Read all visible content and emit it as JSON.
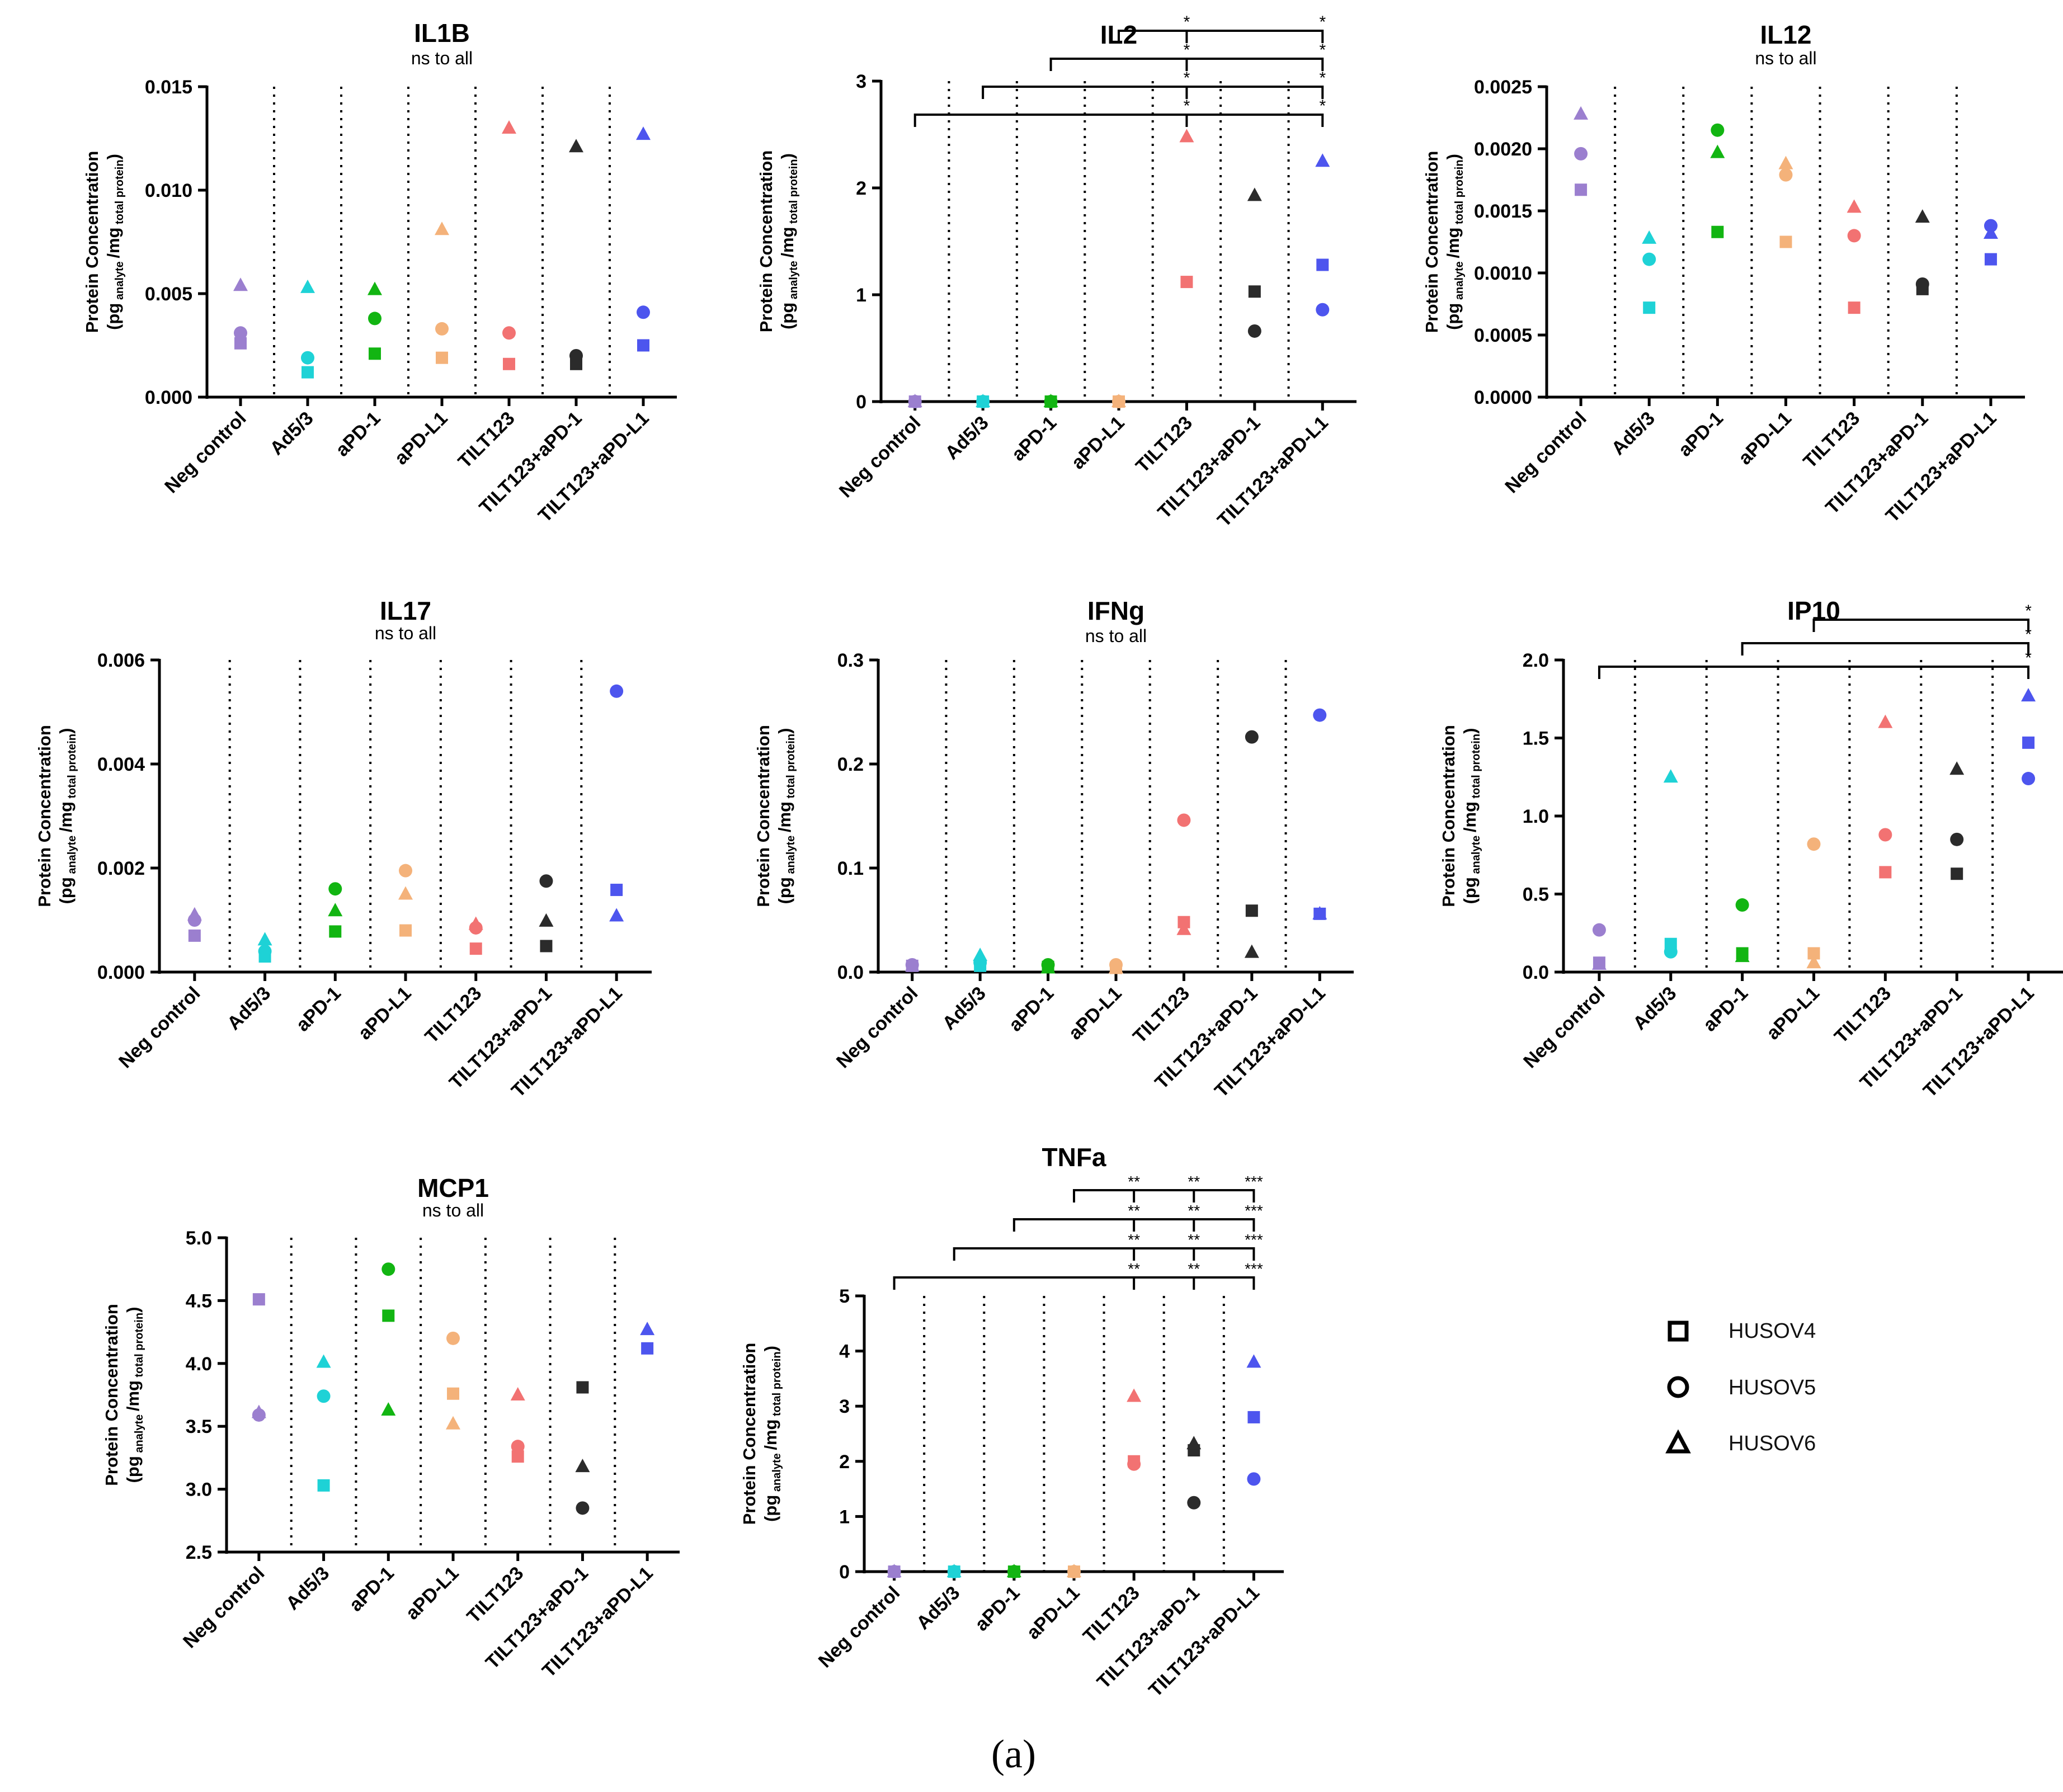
{
  "caption": "(a)",
  "colors": {
    "Neg control": "#9b7fcf",
    "Ad5/3": "#1ed2d6",
    "aPD-1": "#12b512",
    "aPD-L1": "#f4b27a",
    "TILT123": "#f27272",
    "TILT123+aPD-1": "#2b2b2b",
    "TILT123+aPD-L1": "#4d55ee"
  },
  "legend": {
    "items": [
      {
        "label": "HUSOV4",
        "marker": "square"
      },
      {
        "label": "HUSOV5",
        "marker": "circle"
      },
      {
        "label": "HUSOV6",
        "marker": "triangle"
      }
    ]
  },
  "ylabel": {
    "line1": "Protein Concentration",
    "pg": "(pg",
    "analyte": "analyte",
    "mg": "/mg",
    "total": "total protein",
    "close": ")"
  },
  "chart_data": [
    {
      "type": "scatter",
      "title": "IL1B",
      "subtitle": "ns to all",
      "categories": [
        "Neg control",
        "Ad5/3",
        "aPD-1",
        "aPD-L1",
        "TILT123",
        "TILT123+aPD-1",
        "TILT123+aPD-L1"
      ],
      "ylim": [
        0,
        0.015
      ],
      "yticks": [
        0.0,
        0.005,
        0.01,
        0.015
      ],
      "ytick_labels": [
        "0.000",
        "0.005",
        "0.010",
        "0.015"
      ],
      "series": [
        {
          "name": "HUSOV4",
          "marker": "square",
          "values": [
            0.0026,
            0.0012,
            0.0021,
            0.0019,
            0.0016,
            0.0016,
            0.0025
          ]
        },
        {
          "name": "HUSOV5",
          "marker": "circle",
          "values": [
            0.0031,
            0.0019,
            0.0038,
            0.0033,
            0.0031,
            0.002,
            0.0041
          ]
        },
        {
          "name": "HUSOV6",
          "marker": "triangle",
          "values": [
            0.0054,
            0.0053,
            0.0052,
            0.0081,
            0.013,
            0.0121,
            0.0127
          ]
        }
      ],
      "significance": []
    },
    {
      "type": "scatter",
      "title": "IL2",
      "subtitle": "",
      "categories": [
        "Neg control",
        "Ad5/3",
        "aPD-1",
        "aPD-L1",
        "TILT123",
        "TILT123+aPD-1",
        "TILT123+aPD-L1"
      ],
      "ylim": [
        0,
        3
      ],
      "yticks": [
        0,
        1,
        2,
        3
      ],
      "ytick_labels": [
        "0",
        "1",
        "2",
        "3"
      ],
      "series": [
        {
          "name": "HUSOV4",
          "marker": "square",
          "values": [
            0,
            0,
            0,
            0,
            1.12,
            1.03,
            1.28
          ]
        },
        {
          "name": "HUSOV5",
          "marker": "circle",
          "values": [
            0,
            0,
            0,
            0,
            null,
            0.66,
            0.86
          ]
        },
        {
          "name": "HUSOV6",
          "marker": "triangle",
          "values": [
            0,
            0,
            0,
            0,
            2.48,
            1.93,
            2.25
          ]
        }
      ],
      "significance": [
        {
          "from": 3,
          "to": [
            4,
            6
          ],
          "labels": [
            "*",
            "*"
          ]
        },
        {
          "from": 2,
          "to": [
            4,
            6
          ],
          "labels": [
            "*",
            "*"
          ]
        },
        {
          "from": 1,
          "to": [
            4,
            6
          ],
          "labels": [
            "*",
            "*"
          ]
        },
        {
          "from": 0,
          "to": [
            4,
            6
          ],
          "labels": [
            "*",
            "*"
          ]
        }
      ]
    },
    {
      "type": "scatter",
      "title": "IL12",
      "subtitle": "ns to all",
      "categories": [
        "Neg control",
        "Ad5/3",
        "aPD-1",
        "aPD-L1",
        "TILT123",
        "TILT123+aPD-1",
        "TILT123+aPD-L1"
      ],
      "ylim": [
        0,
        0.0025
      ],
      "yticks": [
        0.0,
        0.0005,
        0.001,
        0.0015,
        0.002,
        0.0025
      ],
      "ytick_labels": [
        "0.0000",
        "0.0005",
        "0.0010",
        "0.0015",
        "0.0020",
        "0.0025"
      ],
      "series": [
        {
          "name": "HUSOV4",
          "marker": "square",
          "values": [
            0.00167,
            0.00072,
            0.00133,
            0.00125,
            0.00072,
            0.00087,
            0.00111
          ]
        },
        {
          "name": "HUSOV5",
          "marker": "circle",
          "values": [
            0.00196,
            0.00111,
            0.00215,
            0.00179,
            0.0013,
            0.00091,
            0.00138
          ]
        },
        {
          "name": "HUSOV6",
          "marker": "triangle",
          "values": [
            0.00228,
            0.00128,
            0.00197,
            0.00188,
            0.00153,
            0.00145,
            0.00132
          ]
        }
      ],
      "significance": []
    },
    {
      "type": "scatter",
      "title": "IL17",
      "subtitle": "ns to all",
      "categories": [
        "Neg control",
        "Ad5/3",
        "aPD-1",
        "aPD-L1",
        "TILT123",
        "TILT123+aPD-1",
        "TILT123+aPD-L1"
      ],
      "ylim": [
        0,
        0.006
      ],
      "yticks": [
        0.0,
        0.002,
        0.004,
        0.006
      ],
      "ytick_labels": [
        "0.000",
        "0.002",
        "0.004",
        "0.006"
      ],
      "series": [
        {
          "name": "HUSOV4",
          "marker": "square",
          "values": [
            0.0007,
            0.0003,
            0.00078,
            0.0008,
            0.00045,
            0.0005,
            0.00158
          ]
        },
        {
          "name": "HUSOV5",
          "marker": "circle",
          "values": [
            0.001,
            0.0004,
            0.0016,
            0.00195,
            0.00085,
            0.00175,
            0.0054
          ]
        },
        {
          "name": "HUSOV6",
          "marker": "triangle",
          "values": [
            0.0011,
            0.00062,
            0.00118,
            0.0015,
            0.00092,
            0.00098,
            0.00108
          ]
        }
      ],
      "significance": []
    },
    {
      "type": "scatter",
      "title": "IFNg",
      "subtitle": "ns to all",
      "categories": [
        "Neg control",
        "Ad5/3",
        "aPD-1",
        "aPD-L1",
        "TILT123",
        "TILT123+aPD-1",
        "TILT123+aPD-L1"
      ],
      "ylim": [
        0,
        0.3
      ],
      "yticks": [
        0.0,
        0.1,
        0.2,
        0.3
      ],
      "ytick_labels": [
        "0.0",
        "0.1",
        "0.2",
        "0.3"
      ],
      "series": [
        {
          "name": "HUSOV4",
          "marker": "square",
          "values": [
            0.006,
            0.006,
            0.005,
            0.004,
            0.048,
            0.059,
            0.056
          ]
        },
        {
          "name": "HUSOV5",
          "marker": "circle",
          "values": [
            0.007,
            0.009,
            0.007,
            0.007,
            0.146,
            0.226,
            0.247
          ]
        },
        {
          "name": "HUSOV6",
          "marker": "triangle",
          "values": [
            0.006,
            0.016,
            0.004,
            0.004,
            0.041,
            0.019,
            0.056
          ]
        }
      ],
      "significance": []
    },
    {
      "type": "scatter",
      "title": "IP10",
      "subtitle": "",
      "categories": [
        "Neg control",
        "Ad5/3",
        "aPD-1",
        "aPD-L1",
        "TILT123",
        "TILT123+aPD-1",
        "TILT123+aPD-L1"
      ],
      "ylim": [
        0,
        2.0
      ],
      "yticks": [
        0.0,
        0.5,
        1.0,
        1.5,
        2.0
      ],
      "ytick_labels": [
        "0.0",
        "0.5",
        "1.0",
        "1.5",
        "2.0"
      ],
      "series": [
        {
          "name": "HUSOV4",
          "marker": "square",
          "values": [
            0.06,
            0.18,
            0.12,
            0.12,
            0.64,
            0.63,
            1.47
          ]
        },
        {
          "name": "HUSOV5",
          "marker": "circle",
          "values": [
            0.27,
            0.13,
            0.43,
            0.82,
            0.88,
            0.85,
            1.24
          ]
        },
        {
          "name": "HUSOV6",
          "marker": "triangle",
          "values": [
            0.05,
            1.25,
            0.1,
            0.06,
            1.6,
            1.3,
            1.77
          ]
        }
      ],
      "significance": [
        {
          "from": 3,
          "to": [
            6
          ],
          "labels": [
            "*"
          ]
        },
        {
          "from": 2,
          "to": [
            6
          ],
          "labels": [
            "*"
          ]
        },
        {
          "from": 0,
          "to": [
            6
          ],
          "labels": [
            "*"
          ]
        }
      ]
    },
    {
      "type": "scatter",
      "title": "MCP1",
      "subtitle": "ns to all",
      "categories": [
        "Neg control",
        "Ad5/3",
        "aPD-1",
        "aPD-L1",
        "TILT123",
        "TILT123+aPD-1",
        "TILT123+aPD-L1"
      ],
      "ylim": [
        2.5,
        5.0
      ],
      "yticks": [
        2.5,
        3.0,
        3.5,
        4.0,
        4.5,
        5.0
      ],
      "ytick_labels": [
        "2.5",
        "3.0",
        "3.5",
        "4.0",
        "4.5",
        "5.0"
      ],
      "series": [
        {
          "name": "HUSOV4",
          "marker": "square",
          "values": [
            4.51,
            3.03,
            4.38,
            3.76,
            3.26,
            3.81,
            4.12
          ]
        },
        {
          "name": "HUSOV5",
          "marker": "circle",
          "values": [
            3.59,
            3.74,
            4.75,
            4.2,
            3.34,
            2.85,
            null
          ]
        },
        {
          "name": "HUSOV6",
          "marker": "triangle",
          "values": [
            3.61,
            4.01,
            3.63,
            3.52,
            3.75,
            3.18,
            4.27
          ]
        }
      ],
      "significance": []
    },
    {
      "type": "scatter",
      "title": "TNFa",
      "subtitle": "",
      "categories": [
        "Neg control",
        "Ad5/3",
        "aPD-1",
        "aPD-L1",
        "TILT123",
        "TILT123+aPD-1",
        "TILT123+aPD-L1"
      ],
      "ylim": [
        0,
        5
      ],
      "yticks": [
        0,
        1,
        2,
        3,
        4,
        5
      ],
      "ytick_labels": [
        "0",
        "1",
        "2",
        "3",
        "4",
        "5"
      ],
      "series": [
        {
          "name": "HUSOV4",
          "marker": "square",
          "values": [
            0,
            0,
            0,
            0,
            2.0,
            2.2,
            2.8
          ]
        },
        {
          "name": "HUSOV5",
          "marker": "circle",
          "values": [
            0,
            0,
            0,
            0,
            1.95,
            1.25,
            1.68
          ]
        },
        {
          "name": "HUSOV6",
          "marker": "triangle",
          "values": [
            0,
            0,
            0,
            0,
            3.18,
            2.32,
            3.8
          ]
        }
      ],
      "significance": [
        {
          "from": 3,
          "to": [
            4,
            5,
            6
          ],
          "labels": [
            "**",
            "**",
            "***"
          ]
        },
        {
          "from": 2,
          "to": [
            4,
            5,
            6
          ],
          "labels": [
            "**",
            "**",
            "***"
          ]
        },
        {
          "from": 1,
          "to": [
            4,
            5,
            6
          ],
          "labels": [
            "**",
            "**",
            "***"
          ]
        },
        {
          "from": 0,
          "to": [
            4,
            5,
            6
          ],
          "labels": [
            "**",
            "**",
            "***"
          ]
        }
      ]
    }
  ]
}
